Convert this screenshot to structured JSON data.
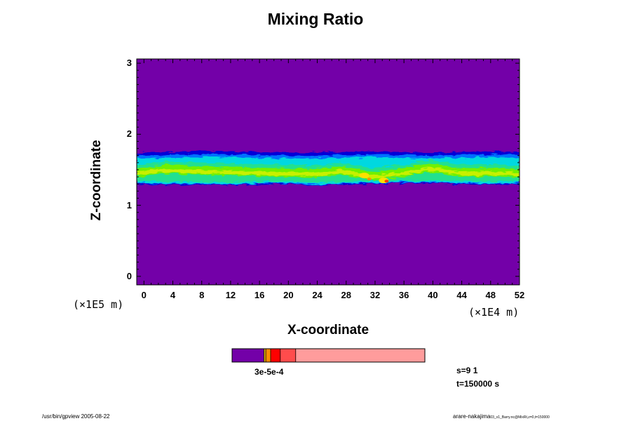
{
  "chart_data": {
    "type": "heatmap",
    "title": "Mixing Ratio",
    "xlabel": "X-coordinate",
    "ylabel": "Z-coordinate",
    "x_unit_label": "(×1E4 m)",
    "y_unit_label": "(×1E5 m)",
    "xlim": [
      -1,
      52
    ],
    "ylim": [
      -0.12,
      3.06
    ],
    "x_ticks": [
      "0",
      "4",
      "8",
      "12",
      "16",
      "20",
      "24",
      "28",
      "32",
      "36",
      "40",
      "44",
      "48",
      "52"
    ],
    "y_ticks": [
      "0",
      "1",
      "2",
      "3"
    ],
    "layer": {
      "bottom": [
        1.3,
        1.29,
        1.29,
        1.28,
        1.29,
        1.3,
        1.28,
        1.29,
        1.3,
        1.31,
        1.31,
        1.3,
        1.29,
        1.3
      ],
      "top": [
        1.74,
        1.75,
        1.76,
        1.76,
        1.75,
        1.74,
        1.74,
        1.75,
        1.76,
        1.75,
        1.74,
        1.75,
        1.76,
        1.75
      ],
      "core_levels": [
        1.45,
        1.5,
        1.48,
        1.47,
        1.46,
        1.45,
        1.44,
        1.48,
        1.4,
        1.45,
        1.52,
        1.45,
        1.46,
        1.44
      ]
    },
    "background_color": "#7300a8",
    "colorbar": {
      "colors": [
        "#7300a8",
        "#e6b000",
        "#ff8c00",
        "#ff0000",
        "#ff4c4c",
        "#ff9c9c"
      ],
      "label": "3e-5e-4"
    },
    "annotations": [
      "s=9 1",
      "t=150000 s"
    ]
  },
  "footer": {
    "left": "/usr/bin/gpview 2005-08-22",
    "right": "arare-nakajima",
    "right_small": "03_x1_Barry.nc@MixRt,z=0,t=150000"
  }
}
